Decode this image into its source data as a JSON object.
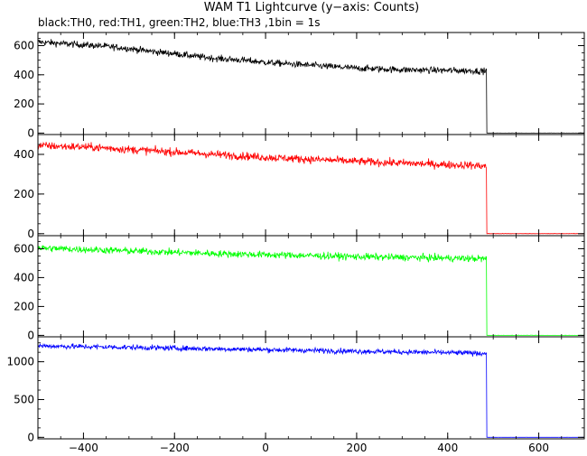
{
  "chart_data": {
    "type": "line",
    "title": "WAM T1 Lightcurve (y−axis: Counts)",
    "subtitle": "black:TH0, red:TH1, green:TH2, blue:TH3 ,1bin = 1s",
    "xlim": [
      -500,
      700
    ],
    "x_ticks": [
      -400,
      -200,
      0,
      200,
      400,
      600
    ],
    "x_tick_labels": [
      "−400",
      "−200",
      "0",
      "200",
      "400",
      "600"
    ],
    "grid": false,
    "series": [
      {
        "color": "#000000",
        "ylim": [
          -10,
          690
        ],
        "y_ticks": [
          0,
          200,
          400,
          600
        ],
        "x": [
          -500,
          -450,
          -400,
          -350,
          -300,
          -250,
          -200,
          -150,
          -100,
          -50,
          0,
          50,
          100,
          150,
          200,
          250,
          300,
          350,
          400,
          450,
          485,
          490,
          700
        ],
        "values": [
          625,
          615,
          605,
          595,
          580,
          560,
          545,
          525,
          510,
          500,
          485,
          475,
          465,
          455,
          445,
          440,
          435,
          432,
          430,
          428,
          425,
          0,
          0
        ]
      },
      {
        "color": "#ff0000",
        "ylim": [
          -10,
          500
        ],
        "y_ticks": [
          0,
          200,
          400
        ],
        "x": [
          -500,
          -450,
          -400,
          -350,
          -300,
          -250,
          -200,
          -150,
          -100,
          -50,
          0,
          50,
          100,
          150,
          200,
          250,
          300,
          350,
          400,
          450,
          485,
          490,
          700
        ],
        "values": [
          445,
          440,
          438,
          432,
          425,
          418,
          412,
          405,
          398,
          392,
          385,
          380,
          375,
          370,
          365,
          360,
          356,
          352,
          348,
          345,
          340,
          0,
          0
        ]
      },
      {
        "color": "#00ff00",
        "ylim": [
          -10,
          690
        ],
        "y_ticks": [
          0,
          200,
          400,
          600
        ],
        "x": [
          -500,
          -450,
          -400,
          -350,
          -300,
          -250,
          -200,
          -150,
          -100,
          -50,
          0,
          50,
          100,
          150,
          200,
          250,
          300,
          350,
          400,
          450,
          485,
          490,
          700
        ],
        "values": [
          605,
          600,
          595,
          590,
          585,
          580,
          575,
          570,
          565,
          562,
          558,
          555,
          552,
          548,
          545,
          542,
          540,
          537,
          535,
          532,
          530,
          0,
          0
        ]
      },
      {
        "color": "#0000ff",
        "ylim": [
          -20,
          1330
        ],
        "y_ticks": [
          0,
          500,
          1000
        ],
        "x": [
          -500,
          -450,
          -400,
          -350,
          -300,
          -250,
          -200,
          -150,
          -100,
          -50,
          0,
          50,
          100,
          150,
          200,
          250,
          300,
          350,
          400,
          450,
          485,
          490,
          700
        ],
        "values": [
          1210,
          1205,
          1200,
          1195,
          1190,
          1185,
          1180,
          1175,
          1170,
          1165,
          1160,
          1155,
          1150,
          1145,
          1140,
          1135,
          1130,
          1125,
          1120,
          1115,
          1110,
          0,
          0
        ]
      }
    ]
  }
}
